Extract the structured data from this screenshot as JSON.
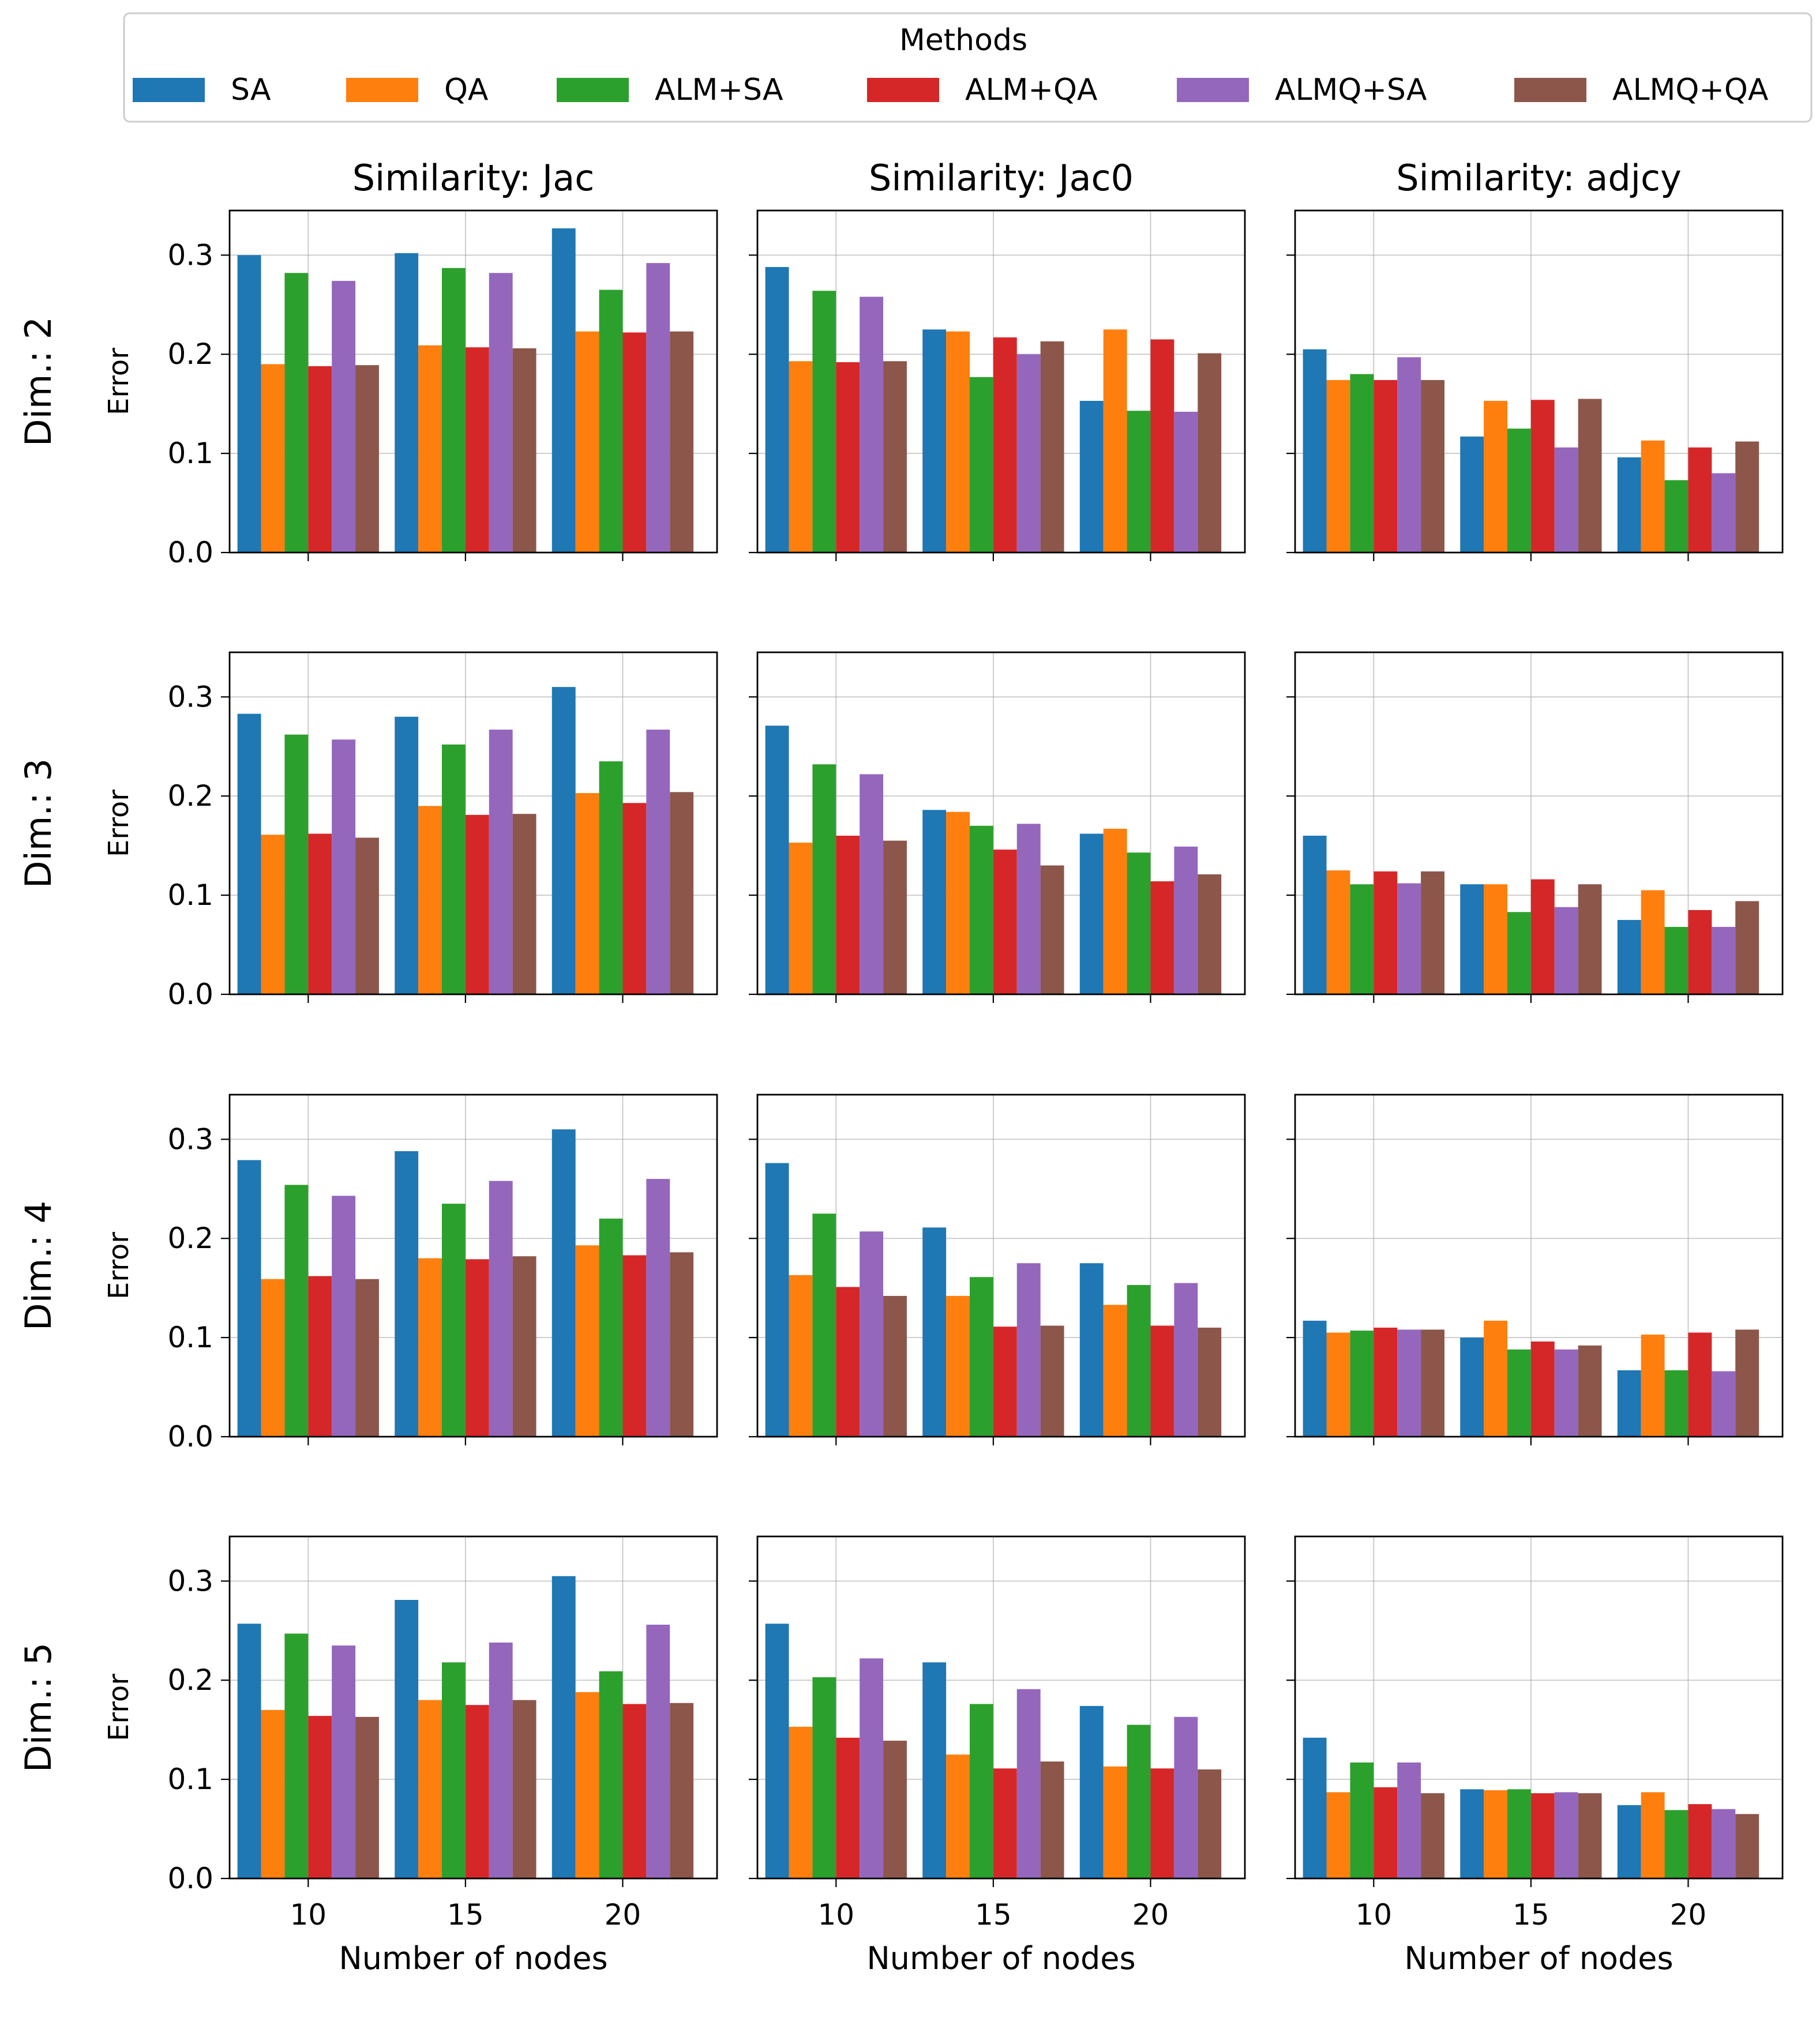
{
  "legend": {
    "title": "Methods",
    "position": "top",
    "entries": [
      {
        "name": "SA",
        "color": "#1f77b4"
      },
      {
        "name": "QA",
        "color": "#ff7f0e"
      },
      {
        "name": "ALM+SA",
        "color": "#2ca02c"
      },
      {
        "name": "ALM+QA",
        "color": "#d62728"
      },
      {
        "name": "ALMQ+SA",
        "color": "#9467bd"
      },
      {
        "name": "ALMQ+QA",
        "color": "#8c564b"
      }
    ]
  },
  "columns": [
    "Similarity: Jac",
    "Similarity: Jac0",
    "Similarity: adjcy"
  ],
  "rows": [
    "Dim.: 2",
    "Dim.: 3",
    "Dim.: 4",
    "Dim.: 5"
  ],
  "xlabel": "Number of nodes",
  "ylabel": "Error",
  "ylim": [
    0,
    0.345
  ],
  "yticks": [
    0.0,
    0.1,
    0.2,
    0.3
  ],
  "ytick_labels": [
    "0.0",
    "0.1",
    "0.2",
    "0.3"
  ],
  "xtick_labels": [
    "10",
    "15",
    "20"
  ],
  "chart_data": [
    {
      "type": "bar",
      "row": "Dim.: 2",
      "title": "Similarity: Jac",
      "xlabel": "Number of nodes",
      "ylabel": "Error",
      "categories": [
        "10",
        "15",
        "20"
      ],
      "series": [
        {
          "name": "SA",
          "values": [
            0.3,
            0.302,
            0.327
          ]
        },
        {
          "name": "QA",
          "values": [
            0.19,
            0.209,
            0.223
          ]
        },
        {
          "name": "ALM+SA",
          "values": [
            0.282,
            0.287,
            0.265
          ]
        },
        {
          "name": "ALM+QA",
          "values": [
            0.188,
            0.207,
            0.222
          ]
        },
        {
          "name": "ALMQ+SA",
          "values": [
            0.274,
            0.282,
            0.292
          ]
        },
        {
          "name": "ALMQ+QA",
          "values": [
            0.189,
            0.206,
            0.223
          ]
        }
      ]
    },
    {
      "type": "bar",
      "row": "Dim.: 2",
      "title": "Similarity: Jac0",
      "xlabel": "Number of nodes",
      "ylabel": "",
      "categories": [
        "10",
        "15",
        "20"
      ],
      "series": [
        {
          "name": "SA",
          "values": [
            0.288,
            0.225,
            0.153
          ]
        },
        {
          "name": "QA",
          "values": [
            0.193,
            0.223,
            0.225
          ]
        },
        {
          "name": "ALM+SA",
          "values": [
            0.264,
            0.177,
            0.143
          ]
        },
        {
          "name": "ALM+QA",
          "values": [
            0.192,
            0.217,
            0.215
          ]
        },
        {
          "name": "ALMQ+SA",
          "values": [
            0.258,
            0.2,
            0.142
          ]
        },
        {
          "name": "ALMQ+QA",
          "values": [
            0.193,
            0.213,
            0.201
          ]
        }
      ]
    },
    {
      "type": "bar",
      "row": "Dim.: 2",
      "title": "Similarity: adjcy",
      "xlabel": "Number of nodes",
      "ylabel": "",
      "categories": [
        "10",
        "15",
        "20"
      ],
      "series": [
        {
          "name": "SA",
          "values": [
            0.205,
            0.117,
            0.096
          ]
        },
        {
          "name": "QA",
          "values": [
            0.174,
            0.153,
            0.113
          ]
        },
        {
          "name": "ALM+SA",
          "values": [
            0.18,
            0.125,
            0.073
          ]
        },
        {
          "name": "ALM+QA",
          "values": [
            0.174,
            0.154,
            0.106
          ]
        },
        {
          "name": "ALMQ+SA",
          "values": [
            0.197,
            0.106,
            0.08
          ]
        },
        {
          "name": "ALMQ+QA",
          "values": [
            0.174,
            0.155,
            0.112
          ]
        }
      ]
    },
    {
      "type": "bar",
      "row": "Dim.: 3",
      "title": "Similarity: Jac",
      "xlabel": "Number of nodes",
      "ylabel": "Error",
      "categories": [
        "10",
        "15",
        "20"
      ],
      "series": [
        {
          "name": "SA",
          "values": [
            0.283,
            0.28,
            0.31
          ]
        },
        {
          "name": "QA",
          "values": [
            0.161,
            0.19,
            0.203
          ]
        },
        {
          "name": "ALM+SA",
          "values": [
            0.262,
            0.252,
            0.235
          ]
        },
        {
          "name": "ALM+QA",
          "values": [
            0.162,
            0.181,
            0.193
          ]
        },
        {
          "name": "ALMQ+SA",
          "values": [
            0.257,
            0.267,
            0.267
          ]
        },
        {
          "name": "ALMQ+QA",
          "values": [
            0.158,
            0.182,
            0.204
          ]
        }
      ]
    },
    {
      "type": "bar",
      "row": "Dim.: 3",
      "title": "Similarity: Jac0",
      "xlabel": "Number of nodes",
      "ylabel": "",
      "categories": [
        "10",
        "15",
        "20"
      ],
      "series": [
        {
          "name": "SA",
          "values": [
            0.271,
            0.186,
            0.162
          ]
        },
        {
          "name": "QA",
          "values": [
            0.153,
            0.184,
            0.167
          ]
        },
        {
          "name": "ALM+SA",
          "values": [
            0.232,
            0.17,
            0.143
          ]
        },
        {
          "name": "ALM+QA",
          "values": [
            0.16,
            0.146,
            0.114
          ]
        },
        {
          "name": "ALMQ+SA",
          "values": [
            0.222,
            0.172,
            0.149
          ]
        },
        {
          "name": "ALMQ+QA",
          "values": [
            0.155,
            0.13,
            0.121
          ]
        }
      ]
    },
    {
      "type": "bar",
      "row": "Dim.: 3",
      "title": "Similarity: adjcy",
      "xlabel": "Number of nodes",
      "ylabel": "",
      "categories": [
        "10",
        "15",
        "20"
      ],
      "series": [
        {
          "name": "SA",
          "values": [
            0.16,
            0.111,
            0.075
          ]
        },
        {
          "name": "QA",
          "values": [
            0.125,
            0.111,
            0.105
          ]
        },
        {
          "name": "ALM+SA",
          "values": [
            0.111,
            0.083,
            0.068
          ]
        },
        {
          "name": "ALM+QA",
          "values": [
            0.124,
            0.116,
            0.085
          ]
        },
        {
          "name": "ALMQ+SA",
          "values": [
            0.112,
            0.088,
            0.068
          ]
        },
        {
          "name": "ALMQ+QA",
          "values": [
            0.124,
            0.111,
            0.094
          ]
        }
      ]
    },
    {
      "type": "bar",
      "row": "Dim.: 4",
      "title": "Similarity: Jac",
      "xlabel": "Number of nodes",
      "ylabel": "Error",
      "categories": [
        "10",
        "15",
        "20"
      ],
      "series": [
        {
          "name": "SA",
          "values": [
            0.279,
            0.288,
            0.31
          ]
        },
        {
          "name": "QA",
          "values": [
            0.159,
            0.18,
            0.193
          ]
        },
        {
          "name": "ALM+SA",
          "values": [
            0.254,
            0.235,
            0.22
          ]
        },
        {
          "name": "ALM+QA",
          "values": [
            0.162,
            0.179,
            0.183
          ]
        },
        {
          "name": "ALMQ+SA",
          "values": [
            0.243,
            0.258,
            0.26
          ]
        },
        {
          "name": "ALMQ+QA",
          "values": [
            0.159,
            0.182,
            0.186
          ]
        }
      ]
    },
    {
      "type": "bar",
      "row": "Dim.: 4",
      "title": "Similarity: Jac0",
      "xlabel": "Number of nodes",
      "ylabel": "",
      "categories": [
        "10",
        "15",
        "20"
      ],
      "series": [
        {
          "name": "SA",
          "values": [
            0.276,
            0.211,
            0.175
          ]
        },
        {
          "name": "QA",
          "values": [
            0.163,
            0.142,
            0.133
          ]
        },
        {
          "name": "ALM+SA",
          "values": [
            0.225,
            0.161,
            0.153
          ]
        },
        {
          "name": "ALM+QA",
          "values": [
            0.151,
            0.111,
            0.112
          ]
        },
        {
          "name": "ALMQ+SA",
          "values": [
            0.207,
            0.175,
            0.155
          ]
        },
        {
          "name": "ALMQ+QA",
          "values": [
            0.142,
            0.112,
            0.11
          ]
        }
      ]
    },
    {
      "type": "bar",
      "row": "Dim.: 4",
      "title": "Similarity: adjcy",
      "xlabel": "Number of nodes",
      "ylabel": "",
      "categories": [
        "10",
        "15",
        "20"
      ],
      "series": [
        {
          "name": "SA",
          "values": [
            0.117,
            0.1,
            0.067
          ]
        },
        {
          "name": "QA",
          "values": [
            0.105,
            0.117,
            0.103
          ]
        },
        {
          "name": "ALM+SA",
          "values": [
            0.107,
            0.088,
            0.067
          ]
        },
        {
          "name": "ALM+QA",
          "values": [
            0.11,
            0.096,
            0.105
          ]
        },
        {
          "name": "ALMQ+SA",
          "values": [
            0.108,
            0.088,
            0.066
          ]
        },
        {
          "name": "ALMQ+QA",
          "values": [
            0.108,
            0.092,
            0.108
          ]
        }
      ]
    },
    {
      "type": "bar",
      "row": "Dim.: 5",
      "title": "Similarity: Jac",
      "xlabel": "Number of nodes",
      "ylabel": "Error",
      "categories": [
        "10",
        "15",
        "20"
      ],
      "series": [
        {
          "name": "SA",
          "values": [
            0.257,
            0.281,
            0.305
          ]
        },
        {
          "name": "QA",
          "values": [
            0.17,
            0.18,
            0.188
          ]
        },
        {
          "name": "ALM+SA",
          "values": [
            0.247,
            0.218,
            0.209
          ]
        },
        {
          "name": "ALM+QA",
          "values": [
            0.164,
            0.175,
            0.176
          ]
        },
        {
          "name": "ALMQ+SA",
          "values": [
            0.235,
            0.238,
            0.256
          ]
        },
        {
          "name": "ALMQ+QA",
          "values": [
            0.163,
            0.18,
            0.177
          ]
        }
      ]
    },
    {
      "type": "bar",
      "row": "Dim.: 5",
      "title": "Similarity: Jac0",
      "xlabel": "Number of nodes",
      "ylabel": "",
      "categories": [
        "10",
        "15",
        "20"
      ],
      "series": [
        {
          "name": "SA",
          "values": [
            0.257,
            0.218,
            0.174
          ]
        },
        {
          "name": "QA",
          "values": [
            0.153,
            0.125,
            0.113
          ]
        },
        {
          "name": "ALM+SA",
          "values": [
            0.203,
            0.176,
            0.155
          ]
        },
        {
          "name": "ALM+QA",
          "values": [
            0.142,
            0.111,
            0.111
          ]
        },
        {
          "name": "ALMQ+SA",
          "values": [
            0.222,
            0.191,
            0.163
          ]
        },
        {
          "name": "ALMQ+QA",
          "values": [
            0.139,
            0.118,
            0.11
          ]
        }
      ]
    },
    {
      "type": "bar",
      "row": "Dim.: 5",
      "title": "Similarity: adjcy",
      "xlabel": "Number of nodes",
      "ylabel": "",
      "categories": [
        "10",
        "15",
        "20"
      ],
      "series": [
        {
          "name": "SA",
          "values": [
            0.142,
            0.09,
            0.074
          ]
        },
        {
          "name": "QA",
          "values": [
            0.087,
            0.089,
            0.087
          ]
        },
        {
          "name": "ALM+SA",
          "values": [
            0.117,
            0.09,
            0.069
          ]
        },
        {
          "name": "ALM+QA",
          "values": [
            0.092,
            0.086,
            0.075
          ]
        },
        {
          "name": "ALMQ+SA",
          "values": [
            0.117,
            0.087,
            0.07
          ]
        },
        {
          "name": "ALMQ+QA",
          "values": [
            0.086,
            0.086,
            0.065
          ]
        }
      ]
    }
  ]
}
